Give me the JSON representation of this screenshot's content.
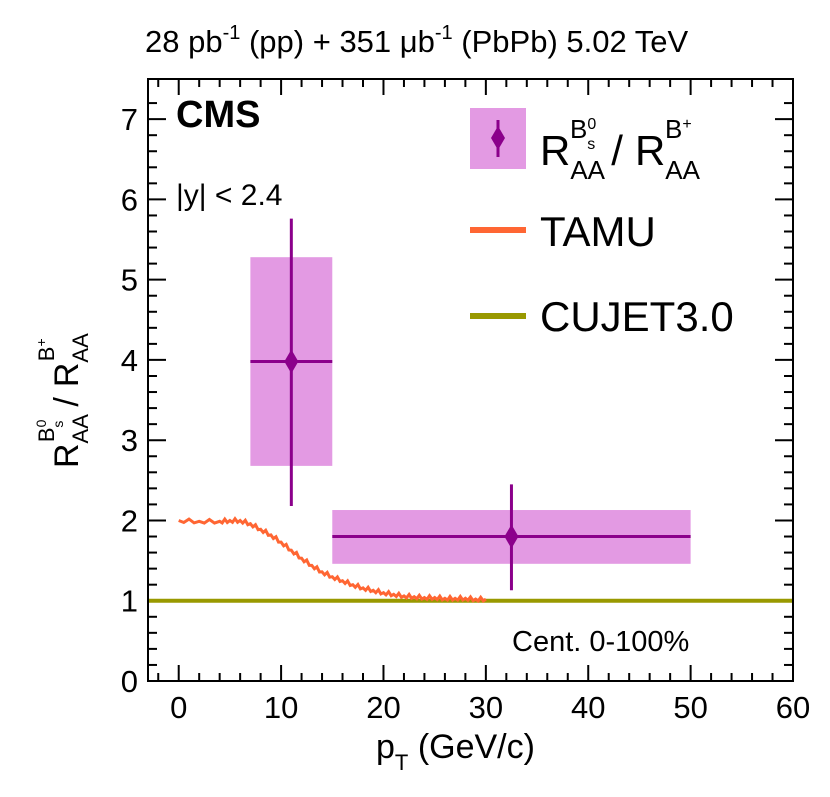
{
  "header": {
    "lumi_pp": "28 pb",
    "lumi_pp_exp": "-1",
    "lumi_pp_tag": " (pp) + 351 μb",
    "lumi_pbpb_exp": "-1",
    "lumi_pbpb_tag": " (PbPb) 5.02 TeV"
  },
  "labels": {
    "experiment": "CMS",
    "rapidity_cut": "|y| < 2.4",
    "centrality": "Cent. 0-100%"
  },
  "colors": {
    "data_marker": "#8b008b",
    "syst_box": "#e39ae3",
    "tamu": "#ff6633",
    "cujet": "#999900"
  },
  "chart_data": {
    "type": "scatter",
    "title": "28 pb-1 (pp) + 351 μb-1 (PbPb) 5.02 TeV",
    "xlabel": "p_T (GeV/c)",
    "ylabel": "R_AA^{Bs0} / R_AA^{B+}",
    "xlim": [
      -3,
      60
    ],
    "ylim": [
      0,
      7.5
    ],
    "x_ticks": [
      0,
      10,
      20,
      30,
      40,
      50,
      60
    ],
    "y_ticks": [
      0,
      1,
      2,
      3,
      4,
      5,
      6,
      7
    ],
    "grid": false,
    "legend_position": "top-right",
    "series": [
      {
        "name": "R_AA^{Bs0} / R_AA^{B+}",
        "kind": "points",
        "points": [
          {
            "x": 11,
            "y": 3.98,
            "x_low": 7,
            "x_high": 15,
            "stat_low": 2.18,
            "stat_high": 5.76,
            "syst_low": 2.68,
            "syst_high": 5.28
          },
          {
            "x": 32.5,
            "y": 1.8,
            "x_low": 15,
            "x_high": 50,
            "stat_low": 1.13,
            "stat_high": 2.45,
            "syst_low": 1.46,
            "syst_high": 2.13
          }
        ]
      },
      {
        "name": "TAMU",
        "kind": "line",
        "x": [
          0,
          2,
          4,
          5,
          6,
          7,
          8,
          9,
          10,
          11,
          12,
          13,
          14,
          15,
          16,
          17,
          18,
          19,
          20,
          21,
          22,
          23,
          24,
          25,
          26,
          27,
          28,
          29,
          30
        ],
        "y": [
          2.0,
          1.99,
          1.99,
          2.0,
          2.0,
          1.96,
          1.89,
          1.82,
          1.73,
          1.63,
          1.53,
          1.44,
          1.36,
          1.3,
          1.25,
          1.2,
          1.16,
          1.13,
          1.1,
          1.08,
          1.06,
          1.05,
          1.04,
          1.04,
          1.03,
          1.03,
          1.03,
          1.02,
          1.02
        ]
      },
      {
        "name": "CUJET3.0",
        "kind": "line",
        "x": [
          -3,
          60
        ],
        "y": [
          1.0,
          1.0
        ]
      }
    ],
    "legend": [
      {
        "label_base": "R",
        "label_sub": "AA",
        "label_sup": "B",
        "label_sup_sup": "0",
        "label_sup_sub": "s",
        "sep": "/",
        "label2_base": "R",
        "label2_sub": "AA",
        "label2_sup": "B",
        "label2_sup_sup": "+"
      },
      {
        "label": "TAMU"
      },
      {
        "label": "CUJET3.0"
      }
    ]
  }
}
